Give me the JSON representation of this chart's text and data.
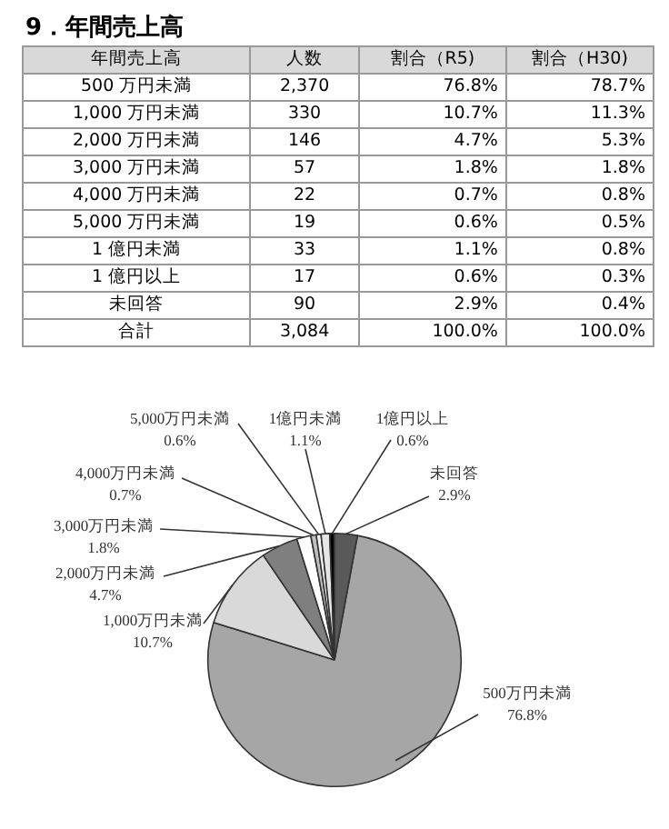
{
  "chart_data": [
    {
      "type": "other",
      "title": "9．年間売上高",
      "annotations": [
        "年間売上高",
        "人数",
        "割合（R5)",
        "割合（H30)",
        "500 万円未満",
        "2,370",
        "76.8%",
        "78.7%",
        "1,000 万円未満",
        "330",
        "10.7%",
        "11.3%",
        "2,000 万円未満",
        "146",
        "4.7%",
        "5.3%",
        "3,000 万円未満",
        "57",
        "1.8%",
        "1.8%",
        "4,000 万円未満",
        "22",
        "0.7%",
        "0.8%",
        "5,000 万円未満",
        "19",
        "0.6%",
        "0.5%",
        "1 億円未満",
        "33",
        "1.1%",
        "0.8%",
        "1 億円以上",
        "17",
        "0.6%",
        "0.3%",
        "未回答",
        "90",
        "2.9%",
        "0.4%",
        "合計",
        "3,084",
        "100.0%",
        "100.0%"
      ]
    },
    {
      "type": "pie",
      "categories": [
        "500万円未満",
        "1,000万円未満",
        "2,000万円未満",
        "3,000万円未満",
        "4,000万円未満",
        "5,000万円未満",
        "1億円未満",
        "1億円以上",
        "未回答"
      ],
      "values": [
        76.8,
        10.7,
        4.7,
        1.8,
        0.7,
        0.6,
        1.1,
        0.6,
        2.9
      ],
      "value_labels": [
        "76.8%",
        "10.7%",
        "4.7%",
        "1.8%",
        "0.7%",
        "0.6%",
        "1.1%",
        "0.6%",
        "2.9%"
      ],
      "colors": [
        "#a6a6a6",
        "#d9d9d9",
        "#7f7f7f",
        "#ffffff",
        "#bfbfbf",
        "#f2f2f2",
        "#e6e6e6",
        "#000000",
        "#595959"
      ]
    }
  ]
}
